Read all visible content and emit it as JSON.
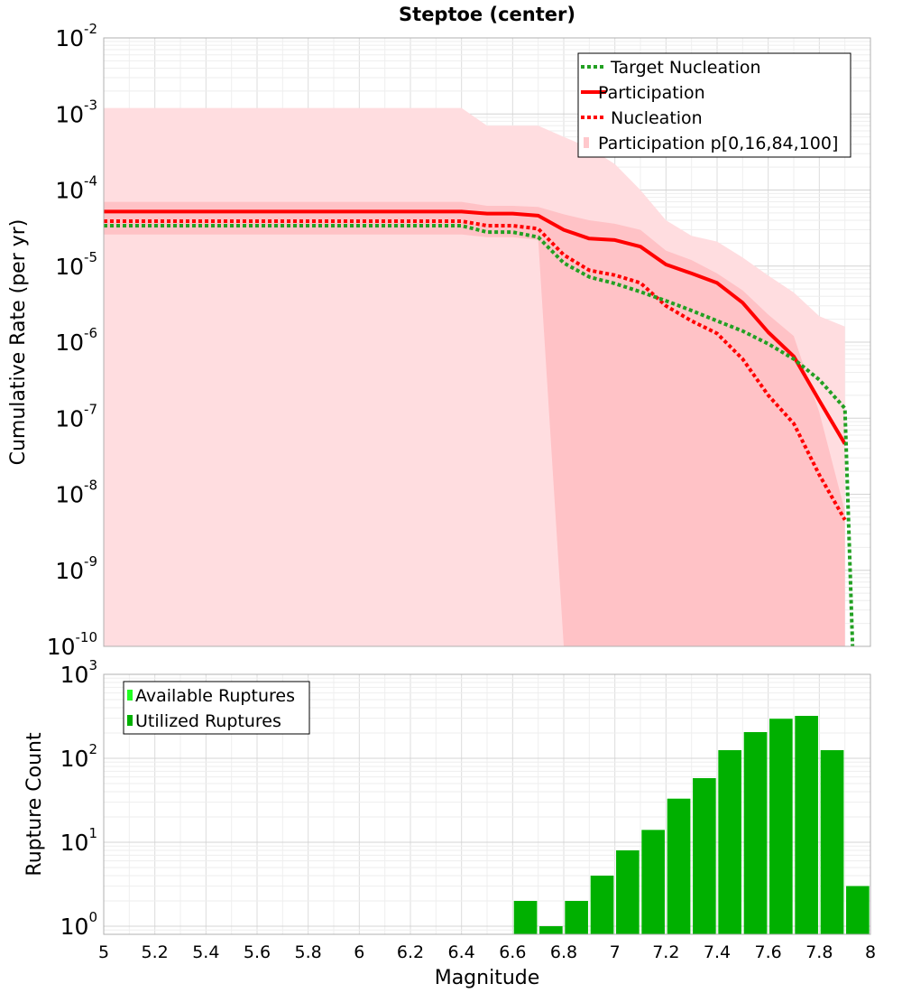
{
  "chart_data": [
    {
      "type": "line",
      "title": "Steptoe (center)",
      "xlabel": "",
      "ylabel": "Cumulative Rate (per yr)",
      "xlim": [
        5,
        8
      ],
      "ylim": [
        1e-10,
        0.01
      ],
      "yscale": "log",
      "grid": true,
      "legend_position": "top-right",
      "ytick_labels": [
        {
          "base": "10",
          "exp": "-10"
        },
        {
          "base": "10",
          "exp": "-9"
        },
        {
          "base": "10",
          "exp": "-8"
        },
        {
          "base": "10",
          "exp": "-7"
        },
        {
          "base": "10",
          "exp": "-6"
        },
        {
          "base": "10",
          "exp": "-5"
        },
        {
          "base": "10",
          "exp": "-4"
        },
        {
          "base": "10",
          "exp": "-3"
        },
        {
          "base": "10",
          "exp": "-2"
        }
      ],
      "legend": [
        {
          "label": "Target Nucleation",
          "style": "dotted-line",
          "color": "#22a022"
        },
        {
          "label": "Participation",
          "style": "solid-line",
          "color": "#ff0000"
        },
        {
          "label": "Nucleation",
          "style": "dotted-line",
          "color": "#ff0000"
        },
        {
          "label": "Participation p[0,16,84,100]",
          "style": "patch",
          "color": "#ffc8cc"
        }
      ],
      "bands": [
        {
          "name": "Participation p[0,100]",
          "color": "#ffdde0",
          "x": [
            5.0,
            6.4,
            6.5,
            6.6,
            6.7,
            6.8,
            6.9,
            7.0,
            7.1,
            7.2,
            7.3,
            7.4,
            7.5,
            7.6,
            7.7,
            7.8,
            7.9
          ],
          "upper": [
            0.0012,
            0.0012,
            0.0007,
            0.0007,
            0.0007,
            0.0005,
            0.00036,
            0.00022,
            0.0001,
            4e-05,
            2.5e-05,
            2.1e-05,
            1.3e-05,
            7.5e-06,
            4.5e-06,
            2.2e-06,
            1.6e-06
          ],
          "lower": [
            1e-10,
            1e-10,
            1e-10,
            1e-10,
            1e-10,
            1e-10,
            1e-10,
            1e-10,
            1e-10,
            1e-10,
            1e-10,
            1e-10,
            1e-10,
            1e-10,
            1e-10,
            1e-10,
            1e-10
          ]
        },
        {
          "name": "Participation p[16,84]",
          "color": "#ffc2c6",
          "x": [
            5.0,
            6.4,
            6.5,
            6.6,
            6.7,
            6.8,
            6.9,
            7.0,
            7.1,
            7.2,
            7.3,
            7.4,
            7.5,
            7.6,
            7.7,
            7.8,
            7.9
          ],
          "upper": [
            7e-05,
            7e-05,
            6.2e-05,
            6.2e-05,
            6e-05,
            4.8e-05,
            4e-05,
            3.6e-05,
            3e-05,
            1.6e-05,
            1.2e-05,
            8e-06,
            4.8e-06,
            2.3e-06,
            1.2e-06,
            1.2e-07,
            6e-09
          ],
          "lower": [
            2.6e-05,
            2.6e-05,
            2.4e-05,
            2.4e-05,
            2.2e-05,
            1e-10,
            1e-10,
            1e-10,
            1e-10,
            1e-10,
            1e-10,
            1e-10,
            1e-10,
            1e-10,
            1e-10,
            1e-10,
            1e-10
          ]
        }
      ],
      "series": [
        {
          "name": "Participation",
          "color": "#ff0000",
          "dash": "solid",
          "x": [
            5.0,
            6.4,
            6.5,
            6.6,
            6.7,
            6.8,
            6.9,
            7.0,
            7.1,
            7.2,
            7.3,
            7.4,
            7.5,
            7.6,
            7.7,
            7.8,
            7.9
          ],
          "y": [
            5.2e-05,
            5.2e-05,
            4.9e-05,
            4.9e-05,
            4.6e-05,
            3e-05,
            2.3e-05,
            2.2e-05,
            1.8e-05,
            1.05e-05,
            8e-06,
            6e-06,
            3.3e-06,
            1.35e-06,
            6.5e-07,
            1.7e-07,
            4.6e-08
          ]
        },
        {
          "name": "Nucleation",
          "color": "#ff0000",
          "dash": "dotted",
          "x": [
            5.0,
            6.4,
            6.5,
            6.6,
            6.7,
            6.8,
            6.9,
            7.0,
            7.1,
            7.2,
            7.3,
            7.4,
            7.5,
            7.6,
            7.7,
            7.8,
            7.9
          ],
          "y": [
            3.9e-05,
            3.9e-05,
            3.4e-05,
            3.4e-05,
            3.1e-05,
            1.4e-05,
            8.8e-06,
            7.6e-06,
            6e-06,
            3e-06,
            1.9e-06,
            1.3e-06,
            6e-07,
            2e-07,
            8.5e-08,
            1.8e-08,
            4.6e-09
          ]
        },
        {
          "name": "Target Nucleation",
          "color": "#22a022",
          "dash": "dotted",
          "x": [
            5.0,
            6.4,
            6.5,
            6.6,
            6.7,
            6.8,
            6.9,
            7.0,
            7.1,
            7.2,
            7.3,
            7.4,
            7.5,
            7.6,
            7.7,
            7.8,
            7.9,
            7.93
          ],
          "y": [
            3.4e-05,
            3.4e-05,
            2.8e-05,
            2.8e-05,
            2.4e-05,
            1.1e-05,
            7.2e-06,
            5.9e-06,
            4.6e-06,
            3.5e-06,
            2.6e-06,
            1.9e-06,
            1.4e-06,
            9.5e-07,
            6e-07,
            3.2e-07,
            1.35e-07,
            1e-10
          ]
        }
      ]
    },
    {
      "type": "bar",
      "title": "",
      "xlabel": "Magnitude",
      "ylabel": "Rupture Count",
      "xlim": [
        5,
        8
      ],
      "ylim": [
        0.8,
        1000
      ],
      "yscale": "log",
      "grid": true,
      "legend_position": "top-left",
      "xtick_labels": [
        "5",
        "5.2",
        "5.4",
        "5.6",
        "5.8",
        "6",
        "6.2",
        "6.4",
        "6.6",
        "6.8",
        "7",
        "7.2",
        "7.4",
        "7.6",
        "7.8",
        "8"
      ],
      "ytick_labels": [
        {
          "base": "10",
          "exp": "0"
        },
        {
          "base": "10",
          "exp": "1"
        },
        {
          "base": "10",
          "exp": "2"
        },
        {
          "base": "10",
          "exp": "3"
        }
      ],
      "legend": [
        {
          "label": "Available Ruptures",
          "color": "#22ff22"
        },
        {
          "label": "Utilized Ruptures",
          "color": "#00b000"
        }
      ],
      "bar_width": 0.09,
      "categories": [
        6.65,
        6.75,
        6.85,
        6.95,
        7.05,
        7.15,
        7.25,
        7.35,
        7.45,
        7.55,
        7.65,
        7.75,
        7.85,
        7.95
      ],
      "series": [
        {
          "name": "Available Ruptures",
          "color": "#22ff22",
          "values": [
            2,
            1,
            2,
            4,
            8,
            14,
            33,
            58,
            125,
            205,
            295,
            320,
            125,
            3
          ]
        },
        {
          "name": "Utilized Ruptures",
          "color": "#00b000",
          "values": [
            2,
            1,
            2,
            4,
            8,
            14,
            33,
            58,
            125,
            205,
            295,
            320,
            125,
            3
          ]
        }
      ]
    }
  ]
}
